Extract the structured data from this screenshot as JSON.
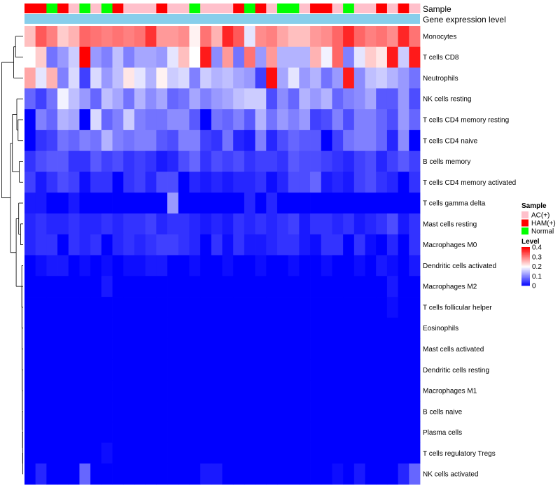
{
  "chart_data": {
    "type": "heatmap",
    "annotation_rows": [
      "Sample",
      "Gene expression level"
    ],
    "n_samples": 36,
    "sample_groups": [
      "HAM(+)",
      "HAM(+)",
      "Normal",
      "HAM(+)",
      "AC(+)",
      "Normal",
      "AC(+)",
      "Normal",
      "HAM(+)",
      "AC(+)",
      "AC(+)",
      "AC(+)",
      "HAM(+)",
      "AC(+)",
      "AC(+)",
      "Normal",
      "AC(+)",
      "AC(+)",
      "AC(+)",
      "HAM(+)",
      "Normal",
      "HAM(+)",
      "AC(+)",
      "Normal",
      "Normal",
      "AC(+)",
      "HAM(+)",
      "HAM(+)",
      "AC(+)",
      "Normal",
      "AC(+)",
      "AC(+)",
      "HAM(+)",
      "AC(+)",
      "HAM(+)",
      "AC(+)"
    ],
    "sample_colors": {
      "AC(+)": "#ffc0cb",
      "HAM(+)": "#ff0000",
      "Normal": "#00ff00"
    },
    "expression_bar_color": "#87ceeb",
    "row_labels": [
      "Monocytes",
      "T cells CD8",
      "Neutrophils",
      "NK cells resting",
      "T cells CD4 memory resting",
      "T cells CD4 naive",
      "B cells memory",
      "T cells CD4 memory activated",
      "T cells gamma delta",
      "Mast cells resting",
      "Macrophages M0",
      "Dendritic cells activated",
      "Macrophages M2",
      "T cells follicular helper",
      "Eosinophils",
      "Mast cells activated",
      "Dendritic cells resting",
      "Macrophages M1",
      "B cells naive",
      "Plasma cells",
      "T cells regulatory  Tregs",
      "NK cells activated"
    ],
    "values": [
      [
        0.25,
        0.33,
        0.3,
        0.24,
        0.26,
        0.32,
        0.31,
        0.3,
        0.31,
        0.3,
        0.31,
        0.36,
        0.28,
        0.28,
        0.29,
        0.21,
        0.31,
        0.26,
        0.37,
        0.33,
        0.18,
        0.29,
        0.3,
        0.27,
        0.25,
        0.25,
        0.28,
        0.29,
        0.32,
        0.37,
        0.32,
        0.3,
        0.31,
        0.29,
        0.37,
        0.31
      ],
      [
        0.2,
        0.24,
        0.09,
        0.12,
        0.16,
        0.4,
        0.12,
        0.1,
        0.15,
        0.1,
        0.13,
        0.13,
        0.12,
        0.18,
        0.25,
        0.2,
        0.38,
        0.11,
        0.28,
        0.09,
        0.31,
        0.12,
        0.28,
        0.14,
        0.14,
        0.14,
        0.26,
        0.19,
        0.32,
        0.1,
        0.18,
        0.24,
        0.22,
        0.38,
        0.16,
        0.38
      ],
      [
        0.27,
        0.18,
        0.26,
        0.1,
        0.17,
        0.05,
        0.17,
        0.12,
        0.15,
        0.22,
        0.18,
        0.14,
        0.21,
        0.16,
        0.17,
        0.1,
        0.16,
        0.14,
        0.15,
        0.13,
        0.12,
        0.05,
        0.39,
        0.13,
        0.18,
        0.12,
        0.14,
        0.09,
        0.12,
        0.38,
        0.11,
        0.15,
        0.16,
        0.14,
        0.12,
        0.09
      ],
      [
        0.08,
        0.05,
        0.09,
        0.19,
        0.15,
        0.12,
        0.08,
        0.15,
        0.13,
        0.09,
        0.14,
        0.11,
        0.13,
        0.08,
        0.09,
        0.13,
        0.1,
        0.12,
        0.13,
        0.15,
        0.16,
        0.16,
        0.06,
        0.11,
        0.08,
        0.14,
        0.12,
        0.14,
        0.08,
        0.1,
        0.11,
        0.13,
        0.07,
        0.07,
        0.12,
        0.06
      ],
      [
        0.0,
        0.1,
        0.08,
        0.14,
        0.13,
        0.0,
        0.17,
        0.08,
        0.1,
        0.16,
        0.1,
        0.09,
        0.09,
        0.11,
        0.11,
        0.07,
        0.0,
        0.09,
        0.08,
        0.1,
        0.07,
        0.14,
        0.09,
        0.12,
        0.1,
        0.12,
        0.05,
        0.06,
        0.1,
        0.06,
        0.1,
        0.1,
        0.08,
        0.06,
        0.12,
        0.08
      ],
      [
        0.0,
        0.04,
        0.05,
        0.09,
        0.08,
        0.1,
        0.09,
        0.14,
        0.1,
        0.09,
        0.1,
        0.1,
        0.07,
        0.06,
        0.1,
        0.1,
        0.05,
        0.04,
        0.09,
        0.03,
        0.02,
        0.1,
        0.03,
        0.06,
        0.08,
        0.07,
        0.07,
        0.0,
        0.05,
        0.09,
        0.1,
        0.1,
        0.08,
        0.03,
        0.11,
        0.0
      ],
      [
        0.04,
        0.06,
        0.07,
        0.07,
        0.04,
        0.04,
        0.07,
        0.05,
        0.06,
        0.04,
        0.05,
        0.04,
        0.02,
        0.03,
        0.06,
        0.08,
        0.04,
        0.06,
        0.05,
        0.06,
        0.04,
        0.05,
        0.05,
        0.04,
        0.07,
        0.06,
        0.06,
        0.05,
        0.04,
        0.03,
        0.05,
        0.06,
        0.03,
        0.05,
        0.07,
        0.05
      ],
      [
        0.05,
        0.02,
        0.04,
        0.06,
        0.05,
        0.01,
        0.04,
        0.04,
        0.0,
        0.04,
        0.05,
        0.03,
        0.06,
        0.06,
        0.0,
        0.03,
        0.02,
        0.03,
        0.02,
        0.03,
        0.03,
        0.04,
        0.01,
        0.03,
        0.06,
        0.06,
        0.08,
        0.02,
        0.03,
        0.02,
        0.05,
        0.06,
        0.04,
        0.03,
        0.0,
        0.04
      ],
      [
        0.02,
        0.02,
        0.0,
        0.0,
        0.02,
        0.0,
        0.0,
        0.0,
        0.0,
        0.0,
        0.0,
        0.0,
        0.0,
        0.12,
        0.0,
        0.0,
        0.0,
        0.0,
        0.0,
        0.0,
        0.03,
        0.0,
        0.03,
        0.0,
        0.0,
        0.0,
        0.0,
        0.0,
        0.0,
        0.0,
        0.0,
        0.0,
        0.0,
        0.0,
        0.0,
        0.0
      ],
      [
        0.03,
        0.04,
        0.03,
        0.03,
        0.04,
        0.03,
        0.03,
        0.04,
        0.03,
        0.04,
        0.04,
        0.05,
        0.03,
        0.04,
        0.04,
        0.03,
        0.02,
        0.03,
        0.02,
        0.04,
        0.03,
        0.04,
        0.03,
        0.04,
        0.05,
        0.02,
        0.04,
        0.04,
        0.03,
        0.04,
        0.02,
        0.03,
        0.04,
        0.06,
        0.02,
        0.04
      ],
      [
        0.03,
        0.04,
        0.04,
        0.0,
        0.04,
        0.03,
        0.04,
        0.0,
        0.03,
        0.04,
        0.03,
        0.04,
        0.05,
        0.05,
        0.04,
        0.03,
        0.0,
        0.04,
        0.01,
        0.04,
        0.02,
        0.02,
        0.03,
        0.04,
        0.04,
        0.02,
        0.01,
        0.04,
        0.04,
        0.0,
        0.04,
        0.01,
        0.0,
        0.03,
        0.0,
        0.04
      ],
      [
        0.0,
        0.01,
        0.02,
        0.02,
        0.0,
        0.01,
        0.0,
        0.01,
        0.0,
        0.01,
        0.01,
        0.02,
        0.02,
        0.0,
        0.0,
        0.01,
        0.0,
        0.0,
        0.01,
        0.0,
        0.0,
        0.01,
        0.0,
        0.0,
        0.01,
        0.0,
        0.0,
        0.01,
        0.0,
        0.0,
        0.01,
        0.0,
        0.02,
        0.01,
        0.0,
        0.02
      ],
      [
        0.0,
        0.0,
        0.0,
        0.0,
        0.0,
        0.0,
        0.0,
        0.02,
        0.0,
        0.0,
        0.0,
        0.0,
        0.0,
        0.0,
        0.0,
        0.0,
        0.0,
        0.0,
        0.0,
        0.0,
        0.0,
        0.0,
        0.0,
        0.0,
        0.0,
        0.0,
        0.0,
        0.0,
        0.0,
        0.0,
        0.0,
        0.0,
        0.0,
        0.02,
        0.0,
        0.0
      ],
      [
        0.0,
        0.0,
        0.0,
        0.0,
        0.0,
        0.0,
        0.0,
        0.0,
        0.0,
        0.0,
        0.0,
        0.0,
        0.0,
        0.0,
        0.0,
        0.0,
        0.0,
        0.0,
        0.0,
        0.0,
        0.0,
        0.0,
        0.0,
        0.0,
        0.0,
        0.0,
        0.0,
        0.0,
        0.0,
        0.0,
        0.0,
        0.0,
        0.0,
        0.01,
        0.0,
        0.0
      ],
      [
        0.0,
        0.0,
        0.0,
        0.0,
        0.0,
        0.0,
        0.0,
        0.0,
        0.0,
        0.0,
        0.0,
        0.0,
        0.0,
        0.0,
        0.0,
        0.0,
        0.0,
        0.0,
        0.0,
        0.0,
        0.0,
        0.0,
        0.0,
        0.0,
        0.0,
        0.0,
        0.0,
        0.0,
        0.0,
        0.0,
        0.0,
        0.0,
        0.0,
        0.0,
        0.0,
        0.0
      ],
      [
        0.0,
        0.0,
        0.0,
        0.0,
        0.0,
        0.0,
        0.0,
        0.0,
        0.0,
        0.0,
        0.0,
        0.0,
        0.0,
        0.0,
        0.0,
        0.0,
        0.0,
        0.0,
        0.0,
        0.0,
        0.0,
        0.0,
        0.0,
        0.0,
        0.0,
        0.0,
        0.0,
        0.0,
        0.0,
        0.0,
        0.0,
        0.0,
        0.0,
        0.0,
        0.0,
        0.0
      ],
      [
        0.0,
        0.0,
        0.0,
        0.0,
        0.0,
        0.0,
        0.0,
        0.0,
        0.0,
        0.0,
        0.0,
        0.0,
        0.0,
        0.0,
        0.0,
        0.0,
        0.0,
        0.0,
        0.0,
        0.0,
        0.0,
        0.0,
        0.0,
        0.0,
        0.0,
        0.0,
        0.0,
        0.0,
        0.0,
        0.0,
        0.0,
        0.0,
        0.0,
        0.0,
        0.0,
        0.0
      ],
      [
        0.0,
        0.0,
        0.0,
        0.0,
        0.0,
        0.0,
        0.0,
        0.0,
        0.0,
        0.0,
        0.0,
        0.0,
        0.0,
        0.0,
        0.0,
        0.0,
        0.0,
        0.0,
        0.0,
        0.0,
        0.0,
        0.0,
        0.0,
        0.0,
        0.0,
        0.0,
        0.0,
        0.0,
        0.0,
        0.0,
        0.0,
        0.0,
        0.0,
        0.0,
        0.0,
        0.0
      ],
      [
        0.0,
        0.0,
        0.0,
        0.0,
        0.0,
        0.0,
        0.0,
        0.0,
        0.0,
        0.0,
        0.0,
        0.0,
        0.0,
        0.0,
        0.0,
        0.0,
        0.0,
        0.0,
        0.0,
        0.0,
        0.0,
        0.0,
        0.0,
        0.0,
        0.0,
        0.0,
        0.0,
        0.0,
        0.0,
        0.0,
        0.0,
        0.0,
        0.0,
        0.0,
        0.0,
        0.0
      ],
      [
        0.0,
        0.0,
        0.0,
        0.0,
        0.0,
        0.0,
        0.0,
        0.0,
        0.0,
        0.0,
        0.0,
        0.0,
        0.0,
        0.0,
        0.0,
        0.0,
        0.0,
        0.0,
        0.0,
        0.0,
        0.0,
        0.0,
        0.0,
        0.0,
        0.0,
        0.0,
        0.0,
        0.0,
        0.0,
        0.0,
        0.0,
        0.0,
        0.0,
        0.0,
        0.0,
        0.0
      ],
      [
        0.0,
        0.0,
        0.0,
        0.0,
        0.0,
        0.0,
        0.0,
        0.01,
        0.0,
        0.0,
        0.0,
        0.0,
        0.0,
        0.0,
        0.0,
        0.0,
        0.0,
        0.0,
        0.0,
        0.0,
        0.0,
        0.0,
        0.0,
        0.0,
        0.0,
        0.0,
        0.0,
        0.0,
        0.0,
        0.0,
        0.0,
        0.0,
        0.0,
        0.0,
        0.0,
        0.0
      ],
      [
        0.0,
        0.03,
        0.0,
        0.0,
        0.0,
        0.08,
        0.0,
        0.0,
        0.0,
        0.0,
        0.0,
        0.0,
        0.0,
        0.0,
        0.0,
        0.0,
        0.02,
        0.02,
        0.0,
        0.0,
        0.0,
        0.0,
        0.0,
        0.0,
        0.0,
        0.0,
        0.0,
        0.0,
        0.01,
        0.0,
        0.02,
        0.0,
        0.0,
        0.0,
        0.03,
        0.08
      ]
    ],
    "legend_sample": {
      "title": "Sample",
      "entries": [
        "AC(+)",
        "HAM(+)",
        "Normal"
      ]
    },
    "legend_level": {
      "title": "Level",
      "ticks": [
        "0.4",
        "0.3",
        "0.2",
        "0.1",
        "0"
      ],
      "tick_values": [
        0.4,
        0.3,
        0.2,
        0.1,
        0
      ],
      "range": [
        0,
        0.4
      ]
    },
    "color_scale": {
      "low": "#0000ff",
      "mid": "#ffffff",
      "high": "#ff0000",
      "mid_value": 0.2
    }
  }
}
